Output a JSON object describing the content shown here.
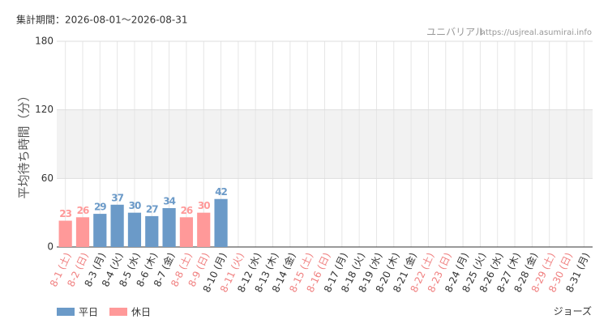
{
  "chart_data": {
    "type": "bar",
    "period": "集計期間：2026-08-01～2026-08-31",
    "source": "ユニバリアル",
    "url": "https://usjreal.asumirai.info",
    "attraction": "ジョーズ",
    "y_label": "平均待ち時間（分）",
    "categories": [
      "8-1 (土)",
      "8-2 (日)",
      "8-3 (月)",
      "8-4 (火)",
      "8-5 (水)",
      "8-6 (木)",
      "8-7 (金)",
      "8-8 (土)",
      "8-9 (日)",
      "8-10 (月)",
      "8-11 (火)",
      "8-12 (水)",
      "8-13 (木)",
      "8-14 (金)",
      "8-15 (土)",
      "8-16 (日)",
      "8-17 (月)",
      "8-18 (火)",
      "8-19 (水)",
      "8-20 (木)",
      "8-21 (金)",
      "8-22 (土)",
      "8-23 (日)",
      "8-24 (月)",
      "8-25 (火)",
      "8-26 (水)",
      "8-27 (木)",
      "8-28 (金)",
      "8-29 (土)",
      "8-30 (日)",
      "8-31 (月)"
    ],
    "category_colors": [
      "#f08080",
      "#f08080",
      "#333333",
      "#333333",
      "#333333",
      "#333333",
      "#333333",
      "#f08080",
      "#f08080",
      "#333333",
      "#f08080",
      "#333333",
      "#333333",
      "#333333",
      "#f08080",
      "#f08080",
      "#333333",
      "#333333",
      "#333333",
      "#333333",
      "#333333",
      "#f08080",
      "#f08080",
      "#333333",
      "#333333",
      "#333333",
      "#333333",
      "#333333",
      "#f08080",
      "#f08080",
      "#333333"
    ],
    "series": [
      {
        "name": "平日",
        "color": "#6b9ac8",
        "values": [
          null,
          null,
          29,
          37,
          30,
          27,
          34,
          null,
          null,
          42,
          null,
          null,
          null,
          null,
          null,
          null,
          null,
          null,
          null,
          null,
          null,
          null,
          null,
          null,
          null,
          null,
          null,
          null,
          null,
          null,
          null
        ]
      },
      {
        "name": "休日",
        "color": "#ff9999",
        "values": [
          23,
          26,
          null,
          null,
          null,
          null,
          null,
          26,
          30,
          null,
          null,
          null,
          null,
          null,
          null,
          null,
          null,
          null,
          null,
          null,
          null,
          null,
          null,
          null,
          null,
          null,
          null,
          null,
          null,
          null,
          null
        ]
      }
    ],
    "ylim": [
      0,
      180
    ],
    "yticks": [
      0,
      60,
      120,
      180
    ],
    "shaded_band": [
      60,
      120
    ],
    "grid": true
  }
}
